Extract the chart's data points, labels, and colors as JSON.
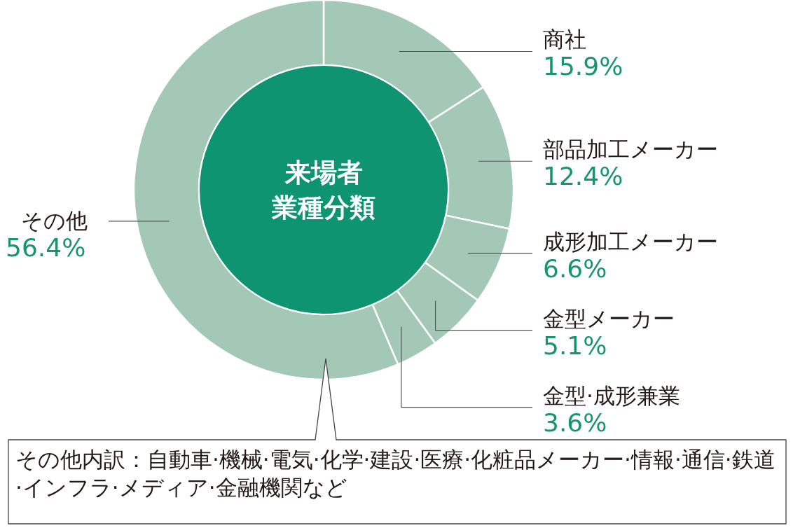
{
  "chart_data": {
    "type": "donut",
    "title": "来場者業種分類",
    "categories": [
      "商社",
      "部品加工メーカー",
      "成形加工メーカー",
      "金型メーカー",
      "金型·成形兼業",
      "その他"
    ],
    "values": [
      15.9,
      12.4,
      6.6,
      5.1,
      3.6,
      56.4
    ],
    "colors": [
      "#a3c8b5",
      "#a3c8b5",
      "#a3c8b5",
      "#a3c8b5",
      "#a3c8b5",
      "#a3c8b5"
    ],
    "value_labels": [
      "15.9%",
      "12.4%",
      "6.6%",
      "5.1%",
      "3.6%",
      "56.4%"
    ],
    "annotations": [
      "その他内訳：自動車·機械·電気·化学·建設·医療·化粧品メーカー·情報·通信·鉄道·インフラ·メディア·金融機関など"
    ]
  }
}
